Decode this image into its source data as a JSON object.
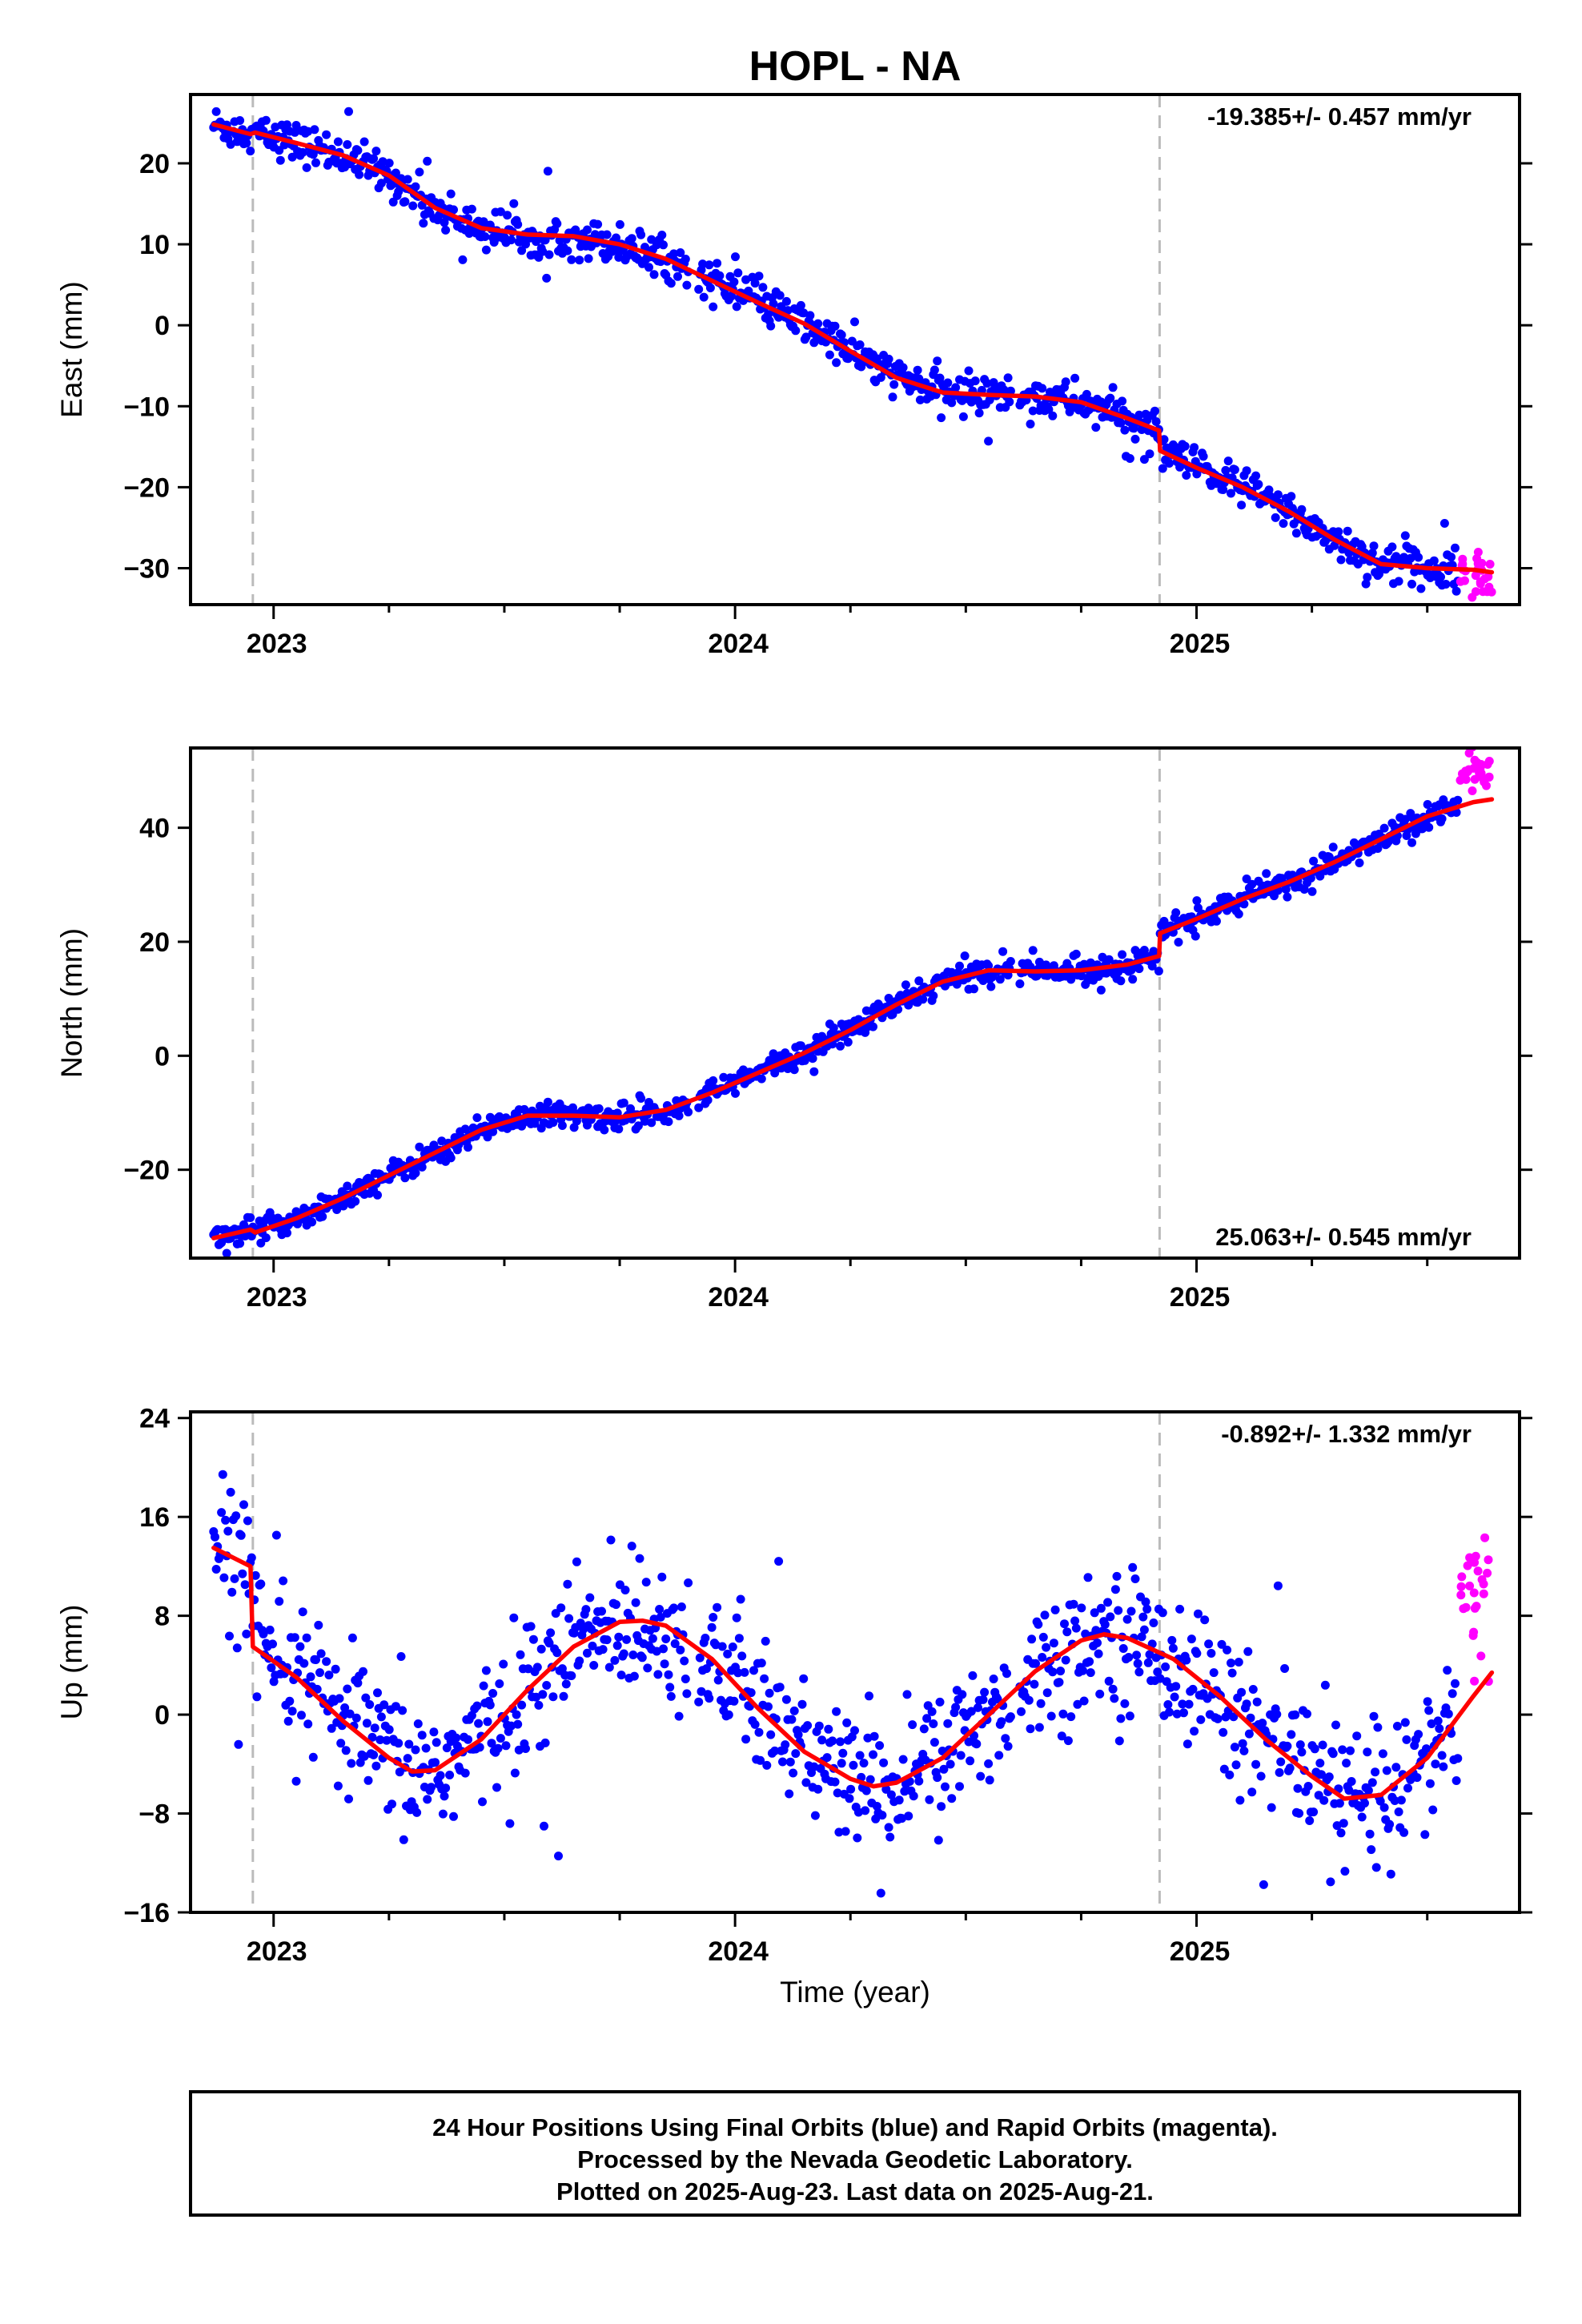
{
  "chart_data": {
    "title": "HOPL - NA",
    "xlabel": "Time (year)",
    "x_tick_labels": [
      "2023",
      "2024",
      "2025"
    ],
    "xlim": [
      2022.82,
      2025.7
    ],
    "equipment_changes": [
      2022.955,
      2024.92
    ],
    "colors": {
      "final": "#0000ff",
      "rapid": "#ff00ff",
      "model": "#ff0000",
      "change_line": "#bbbbbb"
    },
    "panels": [
      {
        "type": "scatter",
        "component": "east",
        "ylabel": "East (mm)",
        "ylim": [
          -34.5,
          28.5
        ],
        "yticks": [
          20,
          10,
          0,
          -10,
          -20,
          -30
        ],
        "y_tick_labels": [
          "20",
          "10",
          "0",
          "−10",
          "−20",
          "−30"
        ],
        "rate_label": "-19.385+/- 0.457 mm/yr",
        "rate_position": "top-right",
        "model_x": [
          2022.87,
          2022.95,
          2022.96,
          2023.05,
          2023.15,
          2023.25,
          2023.35,
          2023.45,
          2023.55,
          2023.65,
          2023.75,
          2023.85,
          2023.95,
          2024.05,
          2024.15,
          2024.25,
          2024.35,
          2024.45,
          2024.55,
          2024.65,
          2024.75,
          2024.85,
          2024.919,
          2024.921,
          2025.0,
          2025.1,
          2025.2,
          2025.3,
          2025.4,
          2025.5,
          2025.6,
          2025.64
        ],
        "model_y": [
          24.8,
          23.6,
          23.8,
          22.5,
          21.0,
          18.5,
          14.5,
          12.0,
          11.2,
          11.0,
          10.0,
          8.2,
          5.5,
          2.8,
          0.2,
          -3.2,
          -6.5,
          -8.3,
          -8.6,
          -8.8,
          -9.5,
          -11.5,
          -13.0,
          -15.5,
          -17.6,
          -20.0,
          -23.0,
          -26.5,
          -29.5,
          -30.0,
          -30.2,
          -30.5
        ],
        "final_noise": 1.2,
        "rapid_range": [
          2025.57,
          2025.64
        ],
        "rapid_noise": 1.8
      },
      {
        "type": "scatter",
        "component": "north",
        "ylabel": "North (mm)",
        "ylim": [
          -35.5,
          54.0
        ],
        "yticks": [
          40,
          20,
          0,
          -20
        ],
        "y_tick_labels": [
          "40",
          "20",
          "0",
          "−20"
        ],
        "rate_label": "25.063+/- 0.545 mm/yr",
        "rate_position": "bottom-right",
        "model_x": [
          2022.87,
          2022.95,
          2022.96,
          2023.05,
          2023.15,
          2023.25,
          2023.35,
          2023.45,
          2023.55,
          2023.65,
          2023.75,
          2023.85,
          2023.95,
          2024.05,
          2024.15,
          2024.25,
          2024.35,
          2024.45,
          2024.55,
          2024.65,
          2024.75,
          2024.85,
          2024.919,
          2024.921,
          2025.0,
          2025.1,
          2025.2,
          2025.3,
          2025.4,
          2025.5,
          2025.6,
          2025.64
        ],
        "model_y": [
          -32.0,
          -30.5,
          -31.0,
          -28.5,
          -25.0,
          -21.0,
          -17.0,
          -13.0,
          -10.5,
          -10.5,
          -10.8,
          -9.5,
          -6.5,
          -3.0,
          0.5,
          4.5,
          9.0,
          13.0,
          15.0,
          14.8,
          15.0,
          16.0,
          17.5,
          21.5,
          24.0,
          27.5,
          30.5,
          34.0,
          38.0,
          42.0,
          44.5,
          45.0
        ],
        "final_noise": 1.1,
        "rapid_range": [
          2025.57,
          2025.64
        ],
        "rapid_noise": 2.0,
        "rapid_offset": 5.5
      },
      {
        "type": "scatter",
        "component": "up",
        "ylabel": "Up (mm)",
        "ylim": [
          -16,
          24.5
        ],
        "yticks": [
          24,
          16,
          8,
          0,
          -8,
          -16
        ],
        "y_tick_labels": [
          "24",
          "16",
          "8",
          "0",
          "−8",
          "−16"
        ],
        "rate_label": "-0.892+/- 1.332 mm/yr",
        "rate_position": "top-right",
        "model_x": [
          2022.87,
          2022.95,
          2022.955,
          2023.05,
          2023.15,
          2023.25,
          2023.3,
          2023.35,
          2023.45,
          2023.55,
          2023.65,
          2023.75,
          2023.8,
          2023.85,
          2023.95,
          2024.05,
          2024.15,
          2024.25,
          2024.3,
          2024.35,
          2024.45,
          2024.55,
          2024.65,
          2024.75,
          2024.8,
          2024.85,
          2024.95,
          2025.05,
          2025.15,
          2025.25,
          2025.32,
          2025.4,
          2025.5,
          2025.6,
          2025.64
        ],
        "model_y": [
          13.5,
          12.0,
          5.5,
          3.0,
          -0.5,
          -3.5,
          -4.6,
          -4.5,
          -2.0,
          2.0,
          5.5,
          7.5,
          7.6,
          7.2,
          4.5,
          0.5,
          -3.0,
          -5.2,
          -5.8,
          -5.5,
          -3.5,
          0.0,
          3.5,
          6.0,
          6.5,
          6.2,
          4.5,
          1.5,
          -2.0,
          -5.0,
          -6.8,
          -6.5,
          -3.5,
          1.5,
          3.4
        ],
        "final_noise": 2.8,
        "rapid_range": [
          2025.57,
          2025.64
        ],
        "rapid_noise": 4.0,
        "rapid_offset": 8.0
      }
    ]
  },
  "footer": {
    "line1": "24 Hour Positions Using Final Orbits (blue) and Rapid Orbits (magenta).",
    "line2": "Processed by the Nevada Geodetic Laboratory.",
    "line3": "Plotted on 2025-Aug-23. Last data on 2025-Aug-21."
  }
}
